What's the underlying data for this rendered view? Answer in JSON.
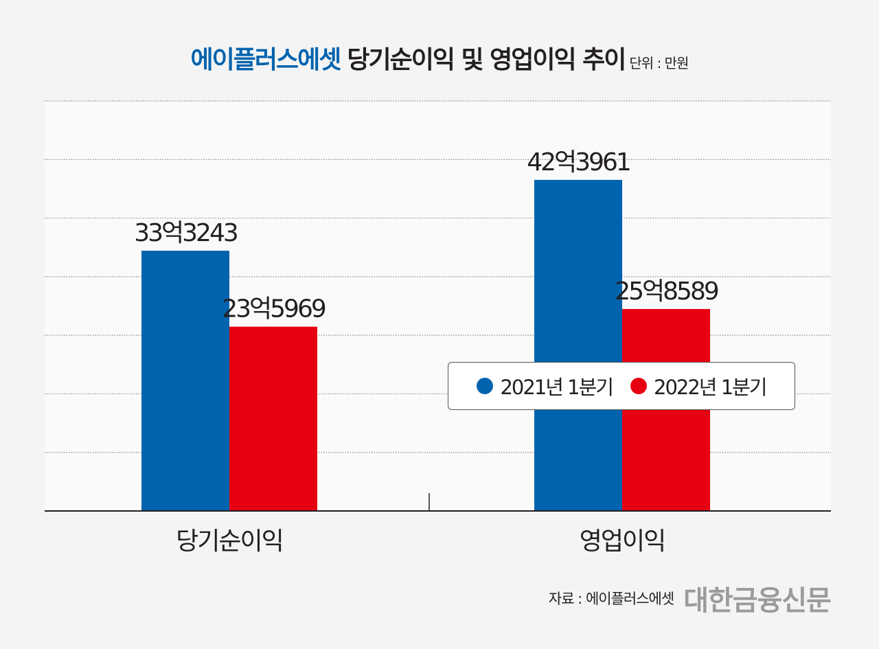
{
  "title": {
    "brand": "에이플러스에셋",
    "main": "당기순이익 및 영업이익 추이",
    "unit": "단위 : 만원"
  },
  "footer": {
    "source": "자료 : 에이플러스에셋",
    "logo": "대한금융신문"
  },
  "colors": {
    "series_2021": "#0063ae",
    "series_2022": "#e60012"
  },
  "chart_data": {
    "type": "bar",
    "title": "에이플러스에셋 당기순이익 및 영업이익 추이",
    "unit": "단위 : 만원",
    "categories": [
      "당기순이익",
      "영업이익"
    ],
    "series": [
      {
        "name": "2021년 1분기",
        "values": [
          333243,
          423961
        ],
        "labels": [
          "33억3243",
          "42억3961"
        ],
        "color": "#0063ae"
      },
      {
        "name": "2022년 1분기",
        "values": [
          235969,
          258589
        ],
        "labels": [
          "23억5969",
          "25억8589"
        ],
        "color": "#e60012"
      }
    ],
    "ylim": [
      0,
      525000
    ],
    "grid": true,
    "grid_step": 75000,
    "legend_position": "inside-right"
  }
}
